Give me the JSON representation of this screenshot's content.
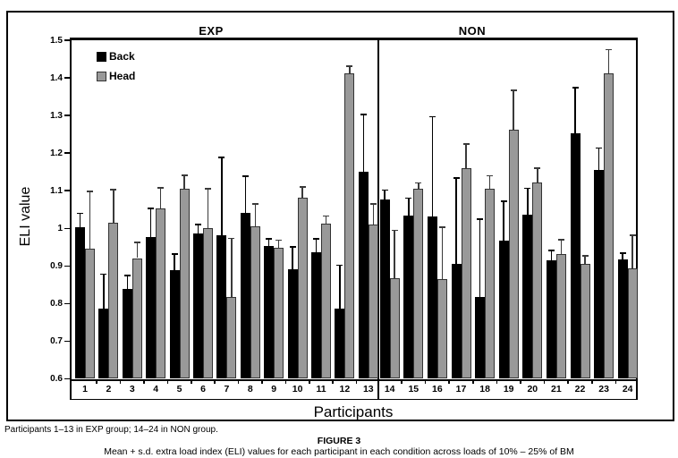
{
  "figure": {
    "group_headers": {
      "exp": "EXP",
      "non": "NON"
    },
    "legend": [
      {
        "label": "Back",
        "color": "#000000"
      },
      {
        "label": "Head",
        "color": "#999999"
      }
    ],
    "y_axis": {
      "label": "ELI value",
      "ticks": [
        "1.5",
        "1.4",
        "1.3",
        "1.2",
        "1.1",
        "1",
        "0.9",
        "0.8",
        "0.7",
        "0.6"
      ]
    },
    "x_axis": {
      "label": "Participants"
    },
    "captions": {
      "note": "Participants 1–13 in EXP group; 14–24 in NON group.",
      "figure_label": "FIGURE 3",
      "figure_caption": "Mean + s.d. extra load index (ELI) values for each participant in each condition across loads of 10% – 25% of BM"
    }
  },
  "chart_data": {
    "type": "bar",
    "title": "FIGURE 3",
    "xlabel": "Participants",
    "ylabel": "ELI value",
    "ylim": [
      0.6,
      1.5
    ],
    "ytick_step": 0.1,
    "grid": false,
    "legend_position": "top-left inside plot",
    "error_bars": "upper +1 s.d. with caps",
    "groups": [
      {
        "label": "EXP",
        "participants": [
          1,
          2,
          3,
          4,
          5,
          6,
          7,
          8,
          9,
          10,
          11,
          12,
          13
        ]
      },
      {
        "label": "NON",
        "participants": [
          14,
          15,
          16,
          17,
          18,
          19,
          20,
          21,
          22,
          23,
          24
        ]
      }
    ],
    "categories": [
      "1",
      "2",
      "3",
      "4",
      "5",
      "6",
      "7",
      "8",
      "9",
      "10",
      "11",
      "12",
      "13",
      "14",
      "15",
      "16",
      "17",
      "18",
      "19",
      "20",
      "21",
      "22",
      "23",
      "24"
    ],
    "series": [
      {
        "name": "Back",
        "color": "#000000",
        "values": [
          1.002,
          0.786,
          0.84,
          0.976,
          0.89,
          0.987,
          0.982,
          1.04,
          0.953,
          0.892,
          0.936,
          0.786,
          1.15,
          1.076,
          1.033,
          1.032,
          0.905,
          0.818,
          0.968,
          1.037,
          0.914,
          1.253,
          1.156,
          0.917
        ],
        "sd": [
          0.04,
          0.094,
          0.036,
          0.079,
          0.043,
          0.025,
          0.208,
          0.1,
          0.021,
          0.061,
          0.038,
          0.118,
          0.154,
          0.027,
          0.049,
          0.266,
          0.231,
          0.208,
          0.106,
          0.071,
          0.029,
          0.123,
          0.059,
          0.019
        ]
      },
      {
        "name": "Head",
        "color": "#999999",
        "values": [
          0.945,
          1.016,
          0.921,
          1.053,
          1.106,
          1.0,
          0.817,
          1.005,
          0.948,
          1.082,
          1.012,
          1.413,
          1.01,
          0.868,
          1.105,
          0.865,
          1.16,
          1.105,
          1.262,
          1.122,
          0.932,
          0.906,
          1.413,
          0.893
        ],
        "sd": [
          0.155,
          0.089,
          0.043,
          0.056,
          0.037,
          0.107,
          0.158,
          0.062,
          0.022,
          0.03,
          0.022,
          0.02,
          0.057,
          0.128,
          0.017,
          0.14,
          0.066,
          0.036,
          0.107,
          0.04,
          0.039,
          0.023,
          0.064,
          0.09
        ]
      }
    ]
  }
}
